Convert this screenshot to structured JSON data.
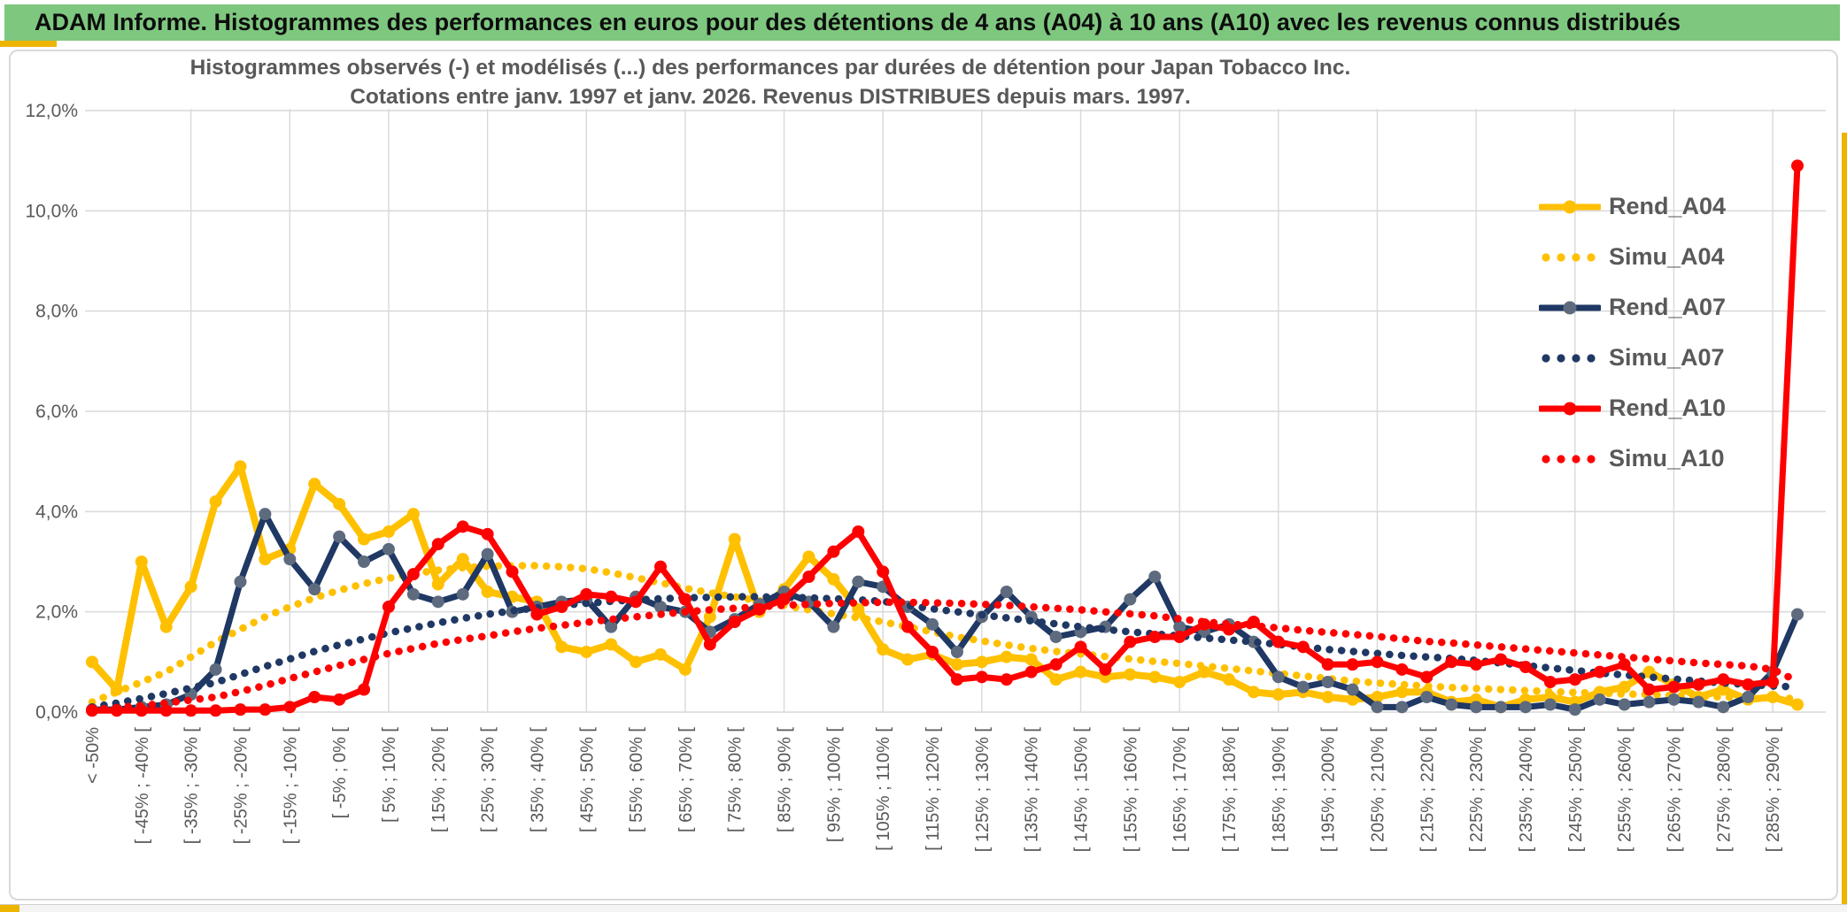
{
  "banner": {
    "text": "ADAM Informe. Histogrammes des performances en euros pour des détentions de 4 ans (A04) à 10 ans (A10) avec les revenus connus distribués",
    "bg_color": "#7EC77F",
    "accent_color": "#EDB500"
  },
  "chart_data": {
    "type": "line",
    "title": "Histogrammes observés (-) et modélisés (...) des performances par durées de détention pour Japan Tobacco Inc.",
    "subtitle": "Cotations entre janv. 1997 et janv. 2026. Revenus DISTRIBUES depuis mars. 1997.",
    "ylim": [
      0,
      12
    ],
    "y_ticks_percent": [
      0,
      2,
      4,
      6,
      8,
      10,
      12
    ],
    "y_tick_labels": [
      "0,0%",
      "2,0%",
      "4,0%",
      "6,0%",
      "8,0%",
      "10,0%",
      "12,0%"
    ],
    "n_points": 70,
    "x_labels_every_other_bin": true,
    "x_tick_labels": [
      "< -50%",
      "[ -45% ; -40% [",
      "[ -35% ; -30% [",
      "[ -25% ; -20% [",
      "[ -15% ; -10% [",
      "[ -5% ; 0% [",
      "[ 5% ; 10% [",
      "[ 15% ; 20% [",
      "[ 25% ; 30% [",
      "[ 35% ; 40% [",
      "[ 45% ; 50% [",
      "[ 55% ; 60% [",
      "[ 65% ; 70% [",
      "[ 75% ; 80% [",
      "[ 85% ; 90% [",
      "[ 95% ; 100% [",
      "[ 105% ; 110% [",
      "[ 115% ; 120% [",
      "[ 125% ; 130% [",
      "[ 135% ; 140% [",
      "[ 145% ; 150% [",
      "[ 155% ; 160% [",
      "[ 165% ; 170% [",
      "[ 175% ; 180% [",
      "[ 185% ; 190% [",
      "[ 195% ; 200% [",
      "[ 205% ; 210% [",
      "[ 215% ; 220% [",
      "[ 225% ; 230% [",
      "[ 235% ; 240% [",
      "[ 245% ; 250% [",
      "[ 255% ; 260% [",
      "[ 265% ; 270% [",
      "[ 275% ; 280% [",
      "[ 285% ; 290% ["
    ],
    "grid": "horizontal 2% steps, vertical every other labeled bin",
    "grid_color": "#D9D9D9",
    "legend_position": "right-upper",
    "series": [
      {
        "name": "Rend_A04",
        "color": "#FFC000",
        "style": "solid",
        "markers": true,
        "marker_color": "#FFC000",
        "values": [
          1.0,
          0.45,
          3.0,
          1.7,
          2.5,
          4.2,
          4.9,
          3.05,
          3.25,
          4.55,
          4.15,
          3.45,
          3.6,
          3.95,
          2.55,
          3.05,
          2.4,
          2.3,
          2.2,
          1.3,
          1.2,
          1.35,
          1.0,
          1.15,
          0.85,
          1.9,
          3.45,
          2.0,
          2.45,
          3.1,
          2.65,
          2.05,
          1.25,
          1.05,
          1.15,
          0.95,
          1.0,
          1.1,
          1.05,
          0.65,
          0.8,
          0.7,
          0.75,
          0.7,
          0.6,
          0.8,
          0.65,
          0.4,
          0.35,
          0.4,
          0.3,
          0.25,
          0.3,
          0.4,
          0.4,
          0.2,
          0.25,
          0.1,
          0.25,
          0.3,
          0.2,
          0.4,
          0.5,
          0.8,
          0.55,
          0.3,
          0.45,
          0.25,
          0.3,
          0.15
        ]
      },
      {
        "name": "Simu_A04",
        "color": "#FFC000",
        "style": "dotted",
        "markers": false,
        "marker_color": "#FFC000",
        "values": [
          0.2,
          0.4,
          0.6,
          0.8,
          1.1,
          1.4,
          1.65,
          1.9,
          2.1,
          2.28,
          2.43,
          2.56,
          2.67,
          2.76,
          2.83,
          2.88,
          2.91,
          2.92,
          2.92,
          2.9,
          2.86,
          2.78,
          2.68,
          2.58,
          2.47,
          2.38,
          2.3,
          2.22,
          2.13,
          2.04,
          1.96,
          1.88,
          1.8,
          1.7,
          1.6,
          1.5,
          1.42,
          1.34,
          1.27,
          1.21,
          1.16,
          1.11,
          1.06,
          1.01,
          0.97,
          0.92,
          0.87,
          0.82,
          0.77,
          0.72,
          0.67,
          0.62,
          0.58,
          0.55,
          0.52,
          0.49,
          0.47,
          0.45,
          0.43,
          0.41,
          0.39,
          0.38,
          0.36,
          0.35,
          0.33,
          0.31,
          0.3,
          0.29,
          0.28,
          0.27
        ]
      },
      {
        "name": "Rend_A07",
        "color": "#1F3864",
        "style": "solid",
        "markers": true,
        "marker_color": "#5E6B7E",
        "values": [
          0.05,
          0.05,
          0.1,
          0.15,
          0.35,
          0.85,
          2.6,
          3.95,
          3.05,
          2.45,
          3.5,
          3.0,
          3.25,
          2.35,
          2.2,
          2.35,
          3.15,
          2.0,
          2.1,
          2.2,
          2.25,
          1.7,
          2.3,
          2.1,
          2.0,
          1.6,
          1.85,
          2.15,
          2.4,
          2.2,
          1.7,
          2.6,
          2.5,
          2.1,
          1.75,
          1.2,
          1.9,
          2.4,
          1.9,
          1.5,
          1.6,
          1.7,
          2.25,
          2.7,
          1.7,
          1.6,
          1.75,
          1.4,
          0.7,
          0.5,
          0.6,
          0.45,
          0.1,
          0.1,
          0.3,
          0.15,
          0.1,
          0.1,
          0.1,
          0.15,
          0.05,
          0.25,
          0.15,
          0.2,
          0.25,
          0.2,
          0.1,
          0.3,
          0.8,
          1.95
        ]
      },
      {
        "name": "Simu_A07",
        "color": "#1F3864",
        "style": "dotted",
        "markers": false,
        "marker_color": "#1F3864",
        "values": [
          0.1,
          0.18,
          0.27,
          0.37,
          0.48,
          0.59,
          0.75,
          0.91,
          1.06,
          1.21,
          1.34,
          1.46,
          1.58,
          1.68,
          1.78,
          1.87,
          1.95,
          2.02,
          2.08,
          2.13,
          2.17,
          2.21,
          2.24,
          2.26,
          2.28,
          2.29,
          2.3,
          2.3,
          2.29,
          2.28,
          2.26,
          2.24,
          2.21,
          2.13,
          2.06,
          2.0,
          1.94,
          1.88,
          1.82,
          1.76,
          1.7,
          1.65,
          1.6,
          1.56,
          1.52,
          1.48,
          1.44,
          1.4,
          1.35,
          1.3,
          1.25,
          1.21,
          1.17,
          1.13,
          1.1,
          1.07,
          1.03,
          0.98,
          0.93,
          0.88,
          0.83,
          0.78,
          0.74,
          0.7,
          0.66,
          0.62,
          0.58,
          0.55,
          0.52,
          0.5
        ]
      },
      {
        "name": "Rend_A10",
        "color": "#FF0000",
        "style": "solid",
        "markers": true,
        "marker_color": "#FF0000",
        "values": [
          0.03,
          0.03,
          0.03,
          0.03,
          0.03,
          0.03,
          0.05,
          0.05,
          0.1,
          0.3,
          0.25,
          0.45,
          2.1,
          2.75,
          3.35,
          3.7,
          3.55,
          2.8,
          1.95,
          2.1,
          2.35,
          2.3,
          2.2,
          2.9,
          2.25,
          1.35,
          1.8,
          2.05,
          2.25,
          2.7,
          3.2,
          3.6,
          2.8,
          1.7,
          1.2,
          0.65,
          0.7,
          0.65,
          0.8,
          0.95,
          1.3,
          0.85,
          1.4,
          1.5,
          1.5,
          1.75,
          1.65,
          1.8,
          1.4,
          1.3,
          0.95,
          0.95,
          1.0,
          0.85,
          0.7,
          1.0,
          0.95,
          1.05,
          0.9,
          0.6,
          0.65,
          0.8,
          0.95,
          0.45,
          0.5,
          0.55,
          0.65,
          0.55,
          0.6,
          10.9
        ]
      },
      {
        "name": "Simu_A10",
        "color": "#FF0000",
        "style": "dotted",
        "markers": false,
        "marker_color": "#FF0000",
        "values": [
          0.05,
          0.09,
          0.13,
          0.18,
          0.24,
          0.3,
          0.41,
          0.53,
          0.67,
          0.8,
          0.93,
          1.05,
          1.17,
          1.27,
          1.37,
          1.45,
          1.52,
          1.6,
          1.67,
          1.73,
          1.79,
          1.85,
          1.9,
          1.95,
          2.0,
          2.04,
          2.07,
          2.1,
          2.13,
          2.15,
          2.17,
          2.18,
          2.19,
          2.19,
          2.18,
          2.17,
          2.15,
          2.13,
          2.1,
          2.07,
          2.04,
          2.0,
          1.96,
          1.92,
          1.86,
          1.8,
          1.76,
          1.72,
          1.68,
          1.63,
          1.59,
          1.55,
          1.51,
          1.46,
          1.41,
          1.38,
          1.34,
          1.3,
          1.26,
          1.22,
          1.18,
          1.14,
          1.1,
          1.06,
          1.02,
          0.98,
          0.95,
          0.92,
          0.85,
          0.62
        ]
      }
    ]
  }
}
